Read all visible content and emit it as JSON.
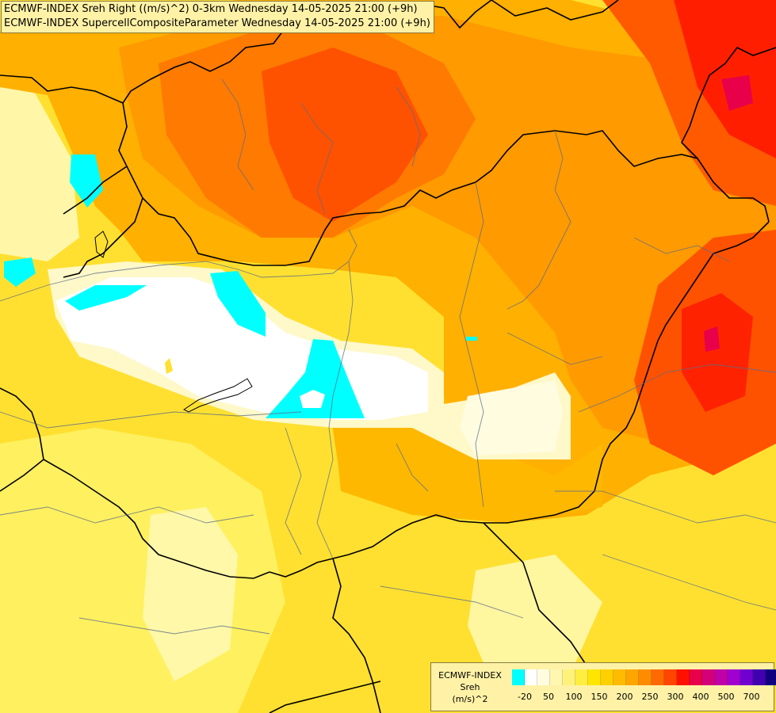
{
  "titles": {
    "line1": "ECMWF-INDEX Sreh Right ((m/s)^2) 0-3km Wednesday 14-05-2025 21:00 (+9h)",
    "line2": "ECMWF-INDEX SupercellCompositeParameter Wednesday 14-05-2025 21:00 (+9h)"
  },
  "legend": {
    "line1": "ECMWF-INDEX",
    "line2": "Sreh",
    "line3": "(m/s)^2",
    "colors": [
      "#00ffff",
      "#ffffff",
      "#fffce0",
      "#fff6b0",
      "#fff27a",
      "#ffee40",
      "#ffe600",
      "#ffd000",
      "#ffbb00",
      "#ffa500",
      "#ff8c00",
      "#ff6a00",
      "#ff4500",
      "#ff1000",
      "#e8004a",
      "#d4007a",
      "#c000a8",
      "#a000d0",
      "#7000d0",
      "#4000b0",
      "#100080"
    ],
    "ticks": [
      "-20",
      "50",
      "100",
      "150",
      "200",
      "250",
      "300",
      "400",
      "500",
      "700"
    ]
  }
}
